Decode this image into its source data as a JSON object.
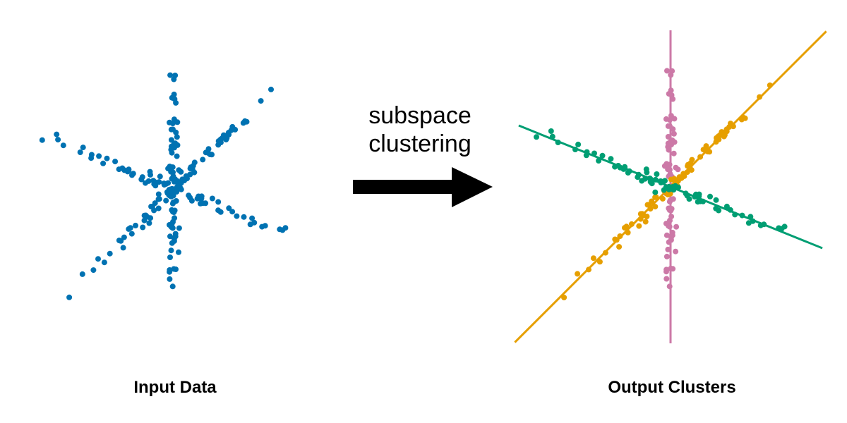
{
  "captions": {
    "input": "Input Data",
    "output": "Output Clusters"
  },
  "arrow": {
    "label_line1": "subspace",
    "label_line2": "clustering",
    "color": "#000000"
  },
  "colors": {
    "input_points": "#0072b2",
    "cluster_vertical": "#cc79a7",
    "cluster_diagonal": "#e69f00",
    "cluster_shallow": "#009e73"
  },
  "clusters": [
    {
      "id": "vertical",
      "color_key": "cluster_vertical"
    },
    {
      "id": "diagonal",
      "color_key": "cluster_diagonal"
    },
    {
      "id": "shallow",
      "color_key": "cluster_shallow"
    }
  ]
}
